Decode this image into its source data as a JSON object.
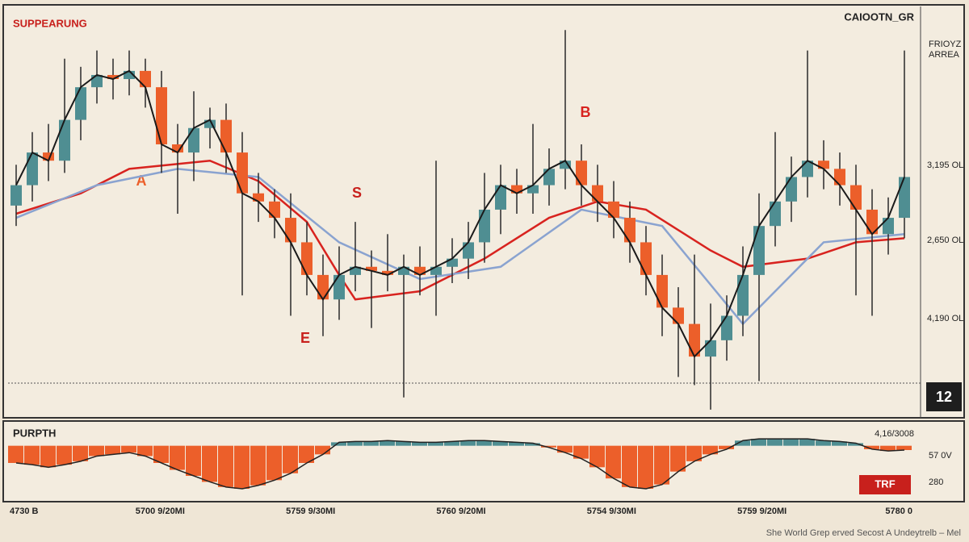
{
  "chart_data": [
    {
      "type": "candlestick",
      "title": "SUPPEARUNG",
      "subtitle": "CAIOOTN_GR",
      "notes": [
        "FRIOYZ",
        "ARREA"
      ],
      "price_labels": [
        "3,195 OL",
        "2,650 OL",
        "4,190 OL"
      ],
      "badge": "12",
      "annotations": [
        "B",
        "S",
        "A",
        "E"
      ],
      "ylim": [
        0,
        100
      ],
      "up_color": "#4f8e92",
      "down_color": "#ec5f2a",
      "open": [
        52,
        57,
        65,
        63,
        73,
        81,
        84,
        83,
        85,
        81,
        67,
        65,
        71,
        73,
        65,
        55,
        53,
        49,
        43,
        35,
        29,
        35,
        37,
        36,
        35,
        37,
        35,
        37,
        39,
        43,
        51,
        57,
        55,
        57,
        61,
        63,
        57,
        53,
        49,
        43,
        35,
        27,
        23,
        15,
        19,
        25,
        35,
        47,
        53,
        59,
        63,
        61,
        57,
        51,
        45,
        49
      ],
      "high": [
        62,
        70,
        72,
        88,
        86,
        90,
        88,
        90,
        88,
        85,
        72,
        80,
        76,
        77,
        70,
        60,
        56,
        55,
        48,
        40,
        42,
        48,
        41,
        45,
        40,
        42,
        63,
        44,
        48,
        60,
        62,
        61,
        72,
        66,
        95,
        67,
        62,
        58,
        53,
        47,
        40,
        32,
        40,
        28,
        30,
        42,
        55,
        70,
        64,
        90,
        68,
        65,
        62,
        56,
        54,
        90
      ],
      "low": [
        47,
        53,
        58,
        60,
        68,
        77,
        78,
        79,
        76,
        60,
        50,
        58,
        66,
        60,
        30,
        48,
        44,
        25,
        30,
        20,
        24,
        31,
        22,
        31,
        5,
        30,
        25,
        33,
        34,
        38,
        45,
        50,
        50,
        52,
        56,
        52,
        48,
        44,
        38,
        30,
        20,
        10,
        8,
        2,
        14,
        20,
        9,
        42,
        48,
        54,
        56,
        52,
        30,
        25,
        40,
        44
      ],
      "close": [
        57,
        65,
        63,
        73,
        81,
        84,
        83,
        85,
        81,
        67,
        65,
        71,
        73,
        65,
        55,
        53,
        49,
        43,
        35,
        29,
        35,
        37,
        36,
        35,
        37,
        35,
        37,
        39,
        43,
        51,
        57,
        55,
        57,
        61,
        63,
        57,
        53,
        49,
        43,
        35,
        27,
        23,
        15,
        19,
        25,
        35,
        47,
        53,
        59,
        63,
        61,
        57,
        51,
        45,
        49,
        59
      ],
      "overlays": [
        {
          "color": "#d8231f",
          "x": [
            0,
            4,
            7,
            12,
            15,
            18,
            20,
            21,
            25,
            29,
            33,
            36,
            39,
            43,
            45,
            49,
            52,
            55
          ],
          "values": [
            50,
            55,
            61,
            63,
            58,
            48,
            35,
            29,
            31,
            39,
            49,
            53,
            51,
            41,
            37,
            39,
            43,
            44
          ]
        },
        {
          "color": "#8aa3d0",
          "x": [
            0,
            5,
            10,
            15,
            20,
            25,
            30,
            35,
            40,
            45,
            50,
            55
          ],
          "values": [
            49,
            57,
            61,
            59,
            43,
            34,
            37,
            51,
            47,
            23,
            43,
            45
          ]
        }
      ]
    },
    {
      "type": "bar",
      "title": "PURPTH",
      "right_labels": [
        "4,16/3008",
        "57 0V",
        "280"
      ],
      "badge": "TRF",
      "ylim": [
        -50,
        10
      ],
      "up_color": "#4f8e92",
      "down_color": "#ec5f2a",
      "values": [
        -20,
        -22,
        -25,
        -22,
        -18,
        -12,
        -10,
        -8,
        -12,
        -20,
        -28,
        -35,
        -42,
        -48,
        -50,
        -46,
        -40,
        -32,
        -20,
        -10,
        4,
        5,
        5,
        6,
        5,
        4,
        4,
        5,
        6,
        6,
        5,
        4,
        3,
        -2,
        -8,
        -15,
        -25,
        -38,
        -48,
        -50,
        -45,
        -30,
        -18,
        -10,
        -4,
        6,
        8,
        8,
        8,
        8,
        6,
        5,
        3,
        -4,
        -6,
        -5
      ],
      "x_labels": [
        "4730 B",
        "5700 9/20MI",
        "5759 9/30MI",
        "5760 9/20MI",
        "5754 9/30MI",
        "5759 9/20MI",
        "5780 0"
      ]
    },
    {
      "footer": "She World Grep erved Secost A Undeytrelb – Mel"
    }
  ]
}
